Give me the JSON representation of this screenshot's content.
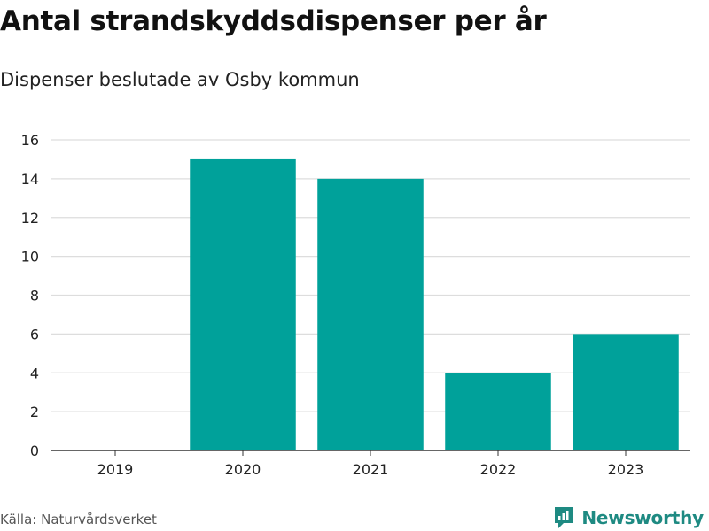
{
  "title": "Antal strandskyddsdispenser per år",
  "subtitle": "Dispenser beslutade av Osby kommun",
  "source": "Källa: Naturvårdsverket",
  "brand": {
    "name": "Newsworthy",
    "icon": "newsworthy-logo-icon",
    "color": "#1e8a82"
  },
  "chart_data": {
    "type": "bar",
    "categories": [
      "2019",
      "2020",
      "2021",
      "2022",
      "2023"
    ],
    "values": [
      0,
      15,
      14,
      4,
      6
    ],
    "ylim": [
      0,
      16
    ],
    "yticks": [
      0,
      2,
      4,
      6,
      8,
      10,
      12,
      14,
      16
    ],
    "grid": true,
    "bar_color": "#00a19a",
    "legend": "none"
  }
}
